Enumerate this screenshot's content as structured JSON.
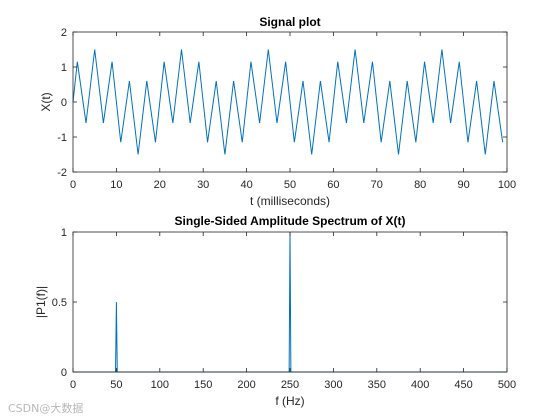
{
  "watermark": "CSDN@大数据",
  "colors": {
    "line": "#0072BD",
    "axis": "#262626",
    "background": "#ffffff"
  },
  "chart_data": [
    {
      "type": "line",
      "title": "Signal plot",
      "xlabel": "t (milliseconds)",
      "ylabel": "X(t)",
      "xlim": [
        0,
        100
      ],
      "ylim": [
        -2,
        2
      ],
      "xticks": [
        0,
        10,
        20,
        30,
        40,
        50,
        60,
        70,
        80,
        90,
        100
      ],
      "yticks": [
        -2,
        -1,
        0,
        1,
        2
      ],
      "grid": false,
      "series": [
        {
          "x": [
            0,
            1,
            3,
            5,
            7,
            9,
            11,
            13,
            15,
            17,
            19,
            21,
            23,
            25,
            27,
            29,
            31,
            33,
            35,
            37,
            39,
            41,
            43,
            45,
            47,
            49,
            51,
            53,
            55,
            57,
            59,
            61,
            63,
            65,
            67,
            69,
            71,
            73,
            75,
            77,
            79,
            81,
            83,
            85,
            87,
            89,
            91,
            93,
            95,
            97,
            99
          ],
          "y": [
            0.0,
            1.15,
            -0.6,
            1.5,
            -0.6,
            1.15,
            -1.15,
            0.6,
            -1.5,
            0.6,
            -1.15,
            1.15,
            -0.6,
            1.5,
            -0.6,
            1.15,
            -1.15,
            0.6,
            -1.5,
            0.6,
            -1.15,
            1.15,
            -0.6,
            1.5,
            -0.6,
            1.15,
            -1.15,
            0.6,
            -1.5,
            0.6,
            -1.15,
            1.15,
            -0.6,
            1.5,
            -0.6,
            1.15,
            -1.15,
            0.6,
            -1.5,
            0.6,
            -1.15,
            1.15,
            -0.6,
            1.5,
            -0.6,
            1.15,
            -1.15,
            0.6,
            -1.5,
            0.6,
            -1.15
          ]
        }
      ]
    },
    {
      "type": "line",
      "title": "Single-Sided Amplitude Spectrum of X(t)",
      "xlabel": "f (Hz)",
      "ylabel": "|P1(f)|",
      "xlim": [
        0,
        500
      ],
      "ylim": [
        0,
        1
      ],
      "xticks": [
        0,
        50,
        100,
        150,
        200,
        250,
        300,
        350,
        400,
        450,
        500
      ],
      "yticks": [
        0,
        0.5,
        1
      ],
      "grid": false,
      "series": [
        {
          "x": [
            0,
            49,
            50,
            51,
            249,
            250,
            251,
            500
          ],
          "y": [
            0,
            0,
            0.5,
            0,
            0,
            1.0,
            0,
            0
          ]
        }
      ]
    }
  ]
}
